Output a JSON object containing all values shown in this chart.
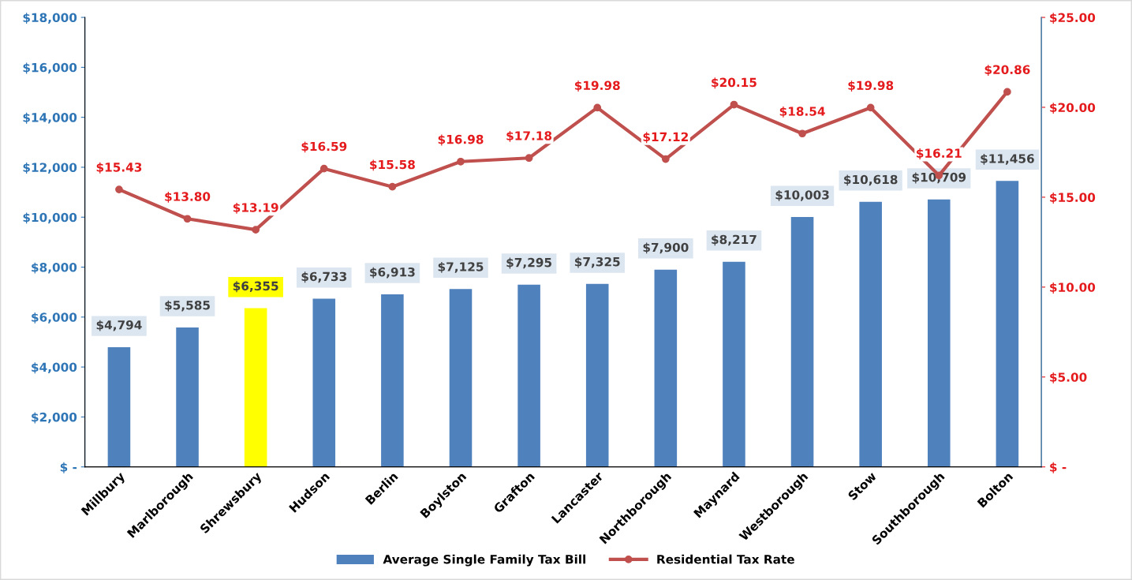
{
  "chart_data": {
    "type": "bar",
    "categories": [
      "Millbury",
      "Marlborough",
      "Shrewsbury",
      "Hudson",
      "Berlin",
      "Boylston",
      "Grafton",
      "Lancaster",
      "Northborough",
      "Maynard",
      "Westborough",
      "Stow",
      "Southborough",
      "Bolton"
    ],
    "series": [
      {
        "name": "Average Single Family Tax Bill",
        "color": "#4f81bd",
        "colors": [
          "#4f81bd",
          "#4f81bd",
          "#ffff00",
          "#4f81bd",
          "#4f81bd",
          "#4f81bd",
          "#4f81bd",
          "#4f81bd",
          "#4f81bd",
          "#4f81bd",
          "#4f81bd",
          "#4f81bd",
          "#4f81bd",
          "#4f81bd"
        ],
        "values": [
          4794,
          5585,
          6355,
          6733,
          6913,
          7125,
          7295,
          7325,
          7900,
          8217,
          10003,
          10618,
          10709,
          11456
        ],
        "value_labels": [
          "$4,794",
          "$5,585",
          "$6,355",
          "$6,733",
          "$6,913",
          "$7,125",
          "$7,295",
          "$7,325",
          "$7,900",
          "$8,217",
          "$10,003",
          "$10,618",
          "$10,709",
          "$11,456"
        ]
      },
      {
        "name": "Residential Tax Rate",
        "type": "line",
        "axis": "y2",
        "color": "#c0504d",
        "marker": "circle",
        "values": [
          15.43,
          13.8,
          13.19,
          16.59,
          15.58,
          16.98,
          17.18,
          19.98,
          17.12,
          20.15,
          18.54,
          19.98,
          16.21,
          20.86
        ],
        "value_labels": [
          "$15.43",
          "$13.80",
          "$13.19",
          "$16.59",
          "$15.58",
          "$16.98",
          "$17.18",
          "$19.98",
          "$17.12",
          "$20.15",
          "$18.54",
          "$19.98",
          "$16.21",
          "$20.86"
        ]
      }
    ],
    "ylim": [
      0,
      18000
    ],
    "yticks": [
      {
        "value": 0,
        "label": "$ -"
      },
      {
        "value": 2000,
        "label": "$2,000"
      },
      {
        "value": 4000,
        "label": "$4,000"
      },
      {
        "value": 6000,
        "label": "$6,000"
      },
      {
        "value": 8000,
        "label": "$8,000"
      },
      {
        "value": 10000,
        "label": "$10,000"
      },
      {
        "value": 12000,
        "label": "$12,000"
      },
      {
        "value": 14000,
        "label": "$14,000"
      },
      {
        "value": 16000,
        "label": "$16,000"
      },
      {
        "value": 18000,
        "label": "$18,000"
      }
    ],
    "y2lim": [
      0,
      25
    ],
    "y2ticks": [
      {
        "value": 0,
        "label": "$ -"
      },
      {
        "value": 5,
        "label": "$5.00"
      },
      {
        "value": 10,
        "label": "$10.00"
      },
      {
        "value": 15,
        "label": "$15.00"
      },
      {
        "value": 20,
        "label": "$20.00"
      },
      {
        "value": 25,
        "label": "$25.00"
      }
    ],
    "grid": false,
    "legend": "bottom"
  }
}
